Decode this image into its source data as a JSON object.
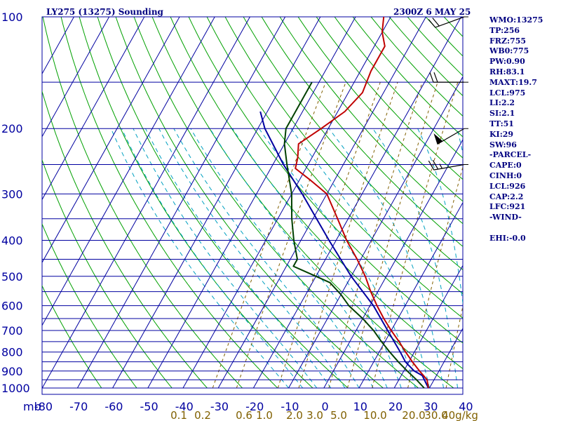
{
  "header": {
    "title": "LY275 (13275) Sounding",
    "time": "2300Z  6 MAY 25"
  },
  "side_panel": [
    "WMO:13275",
    "TP:256",
    "FRZ:755",
    "WB0:775",
    "PW:0.90",
    "RH:83.1",
    "MAXT:19.7",
    "LCL:975",
    "LI:2.2",
    "SI:2.1",
    "TT:51",
    "KI:29",
    "SW:96",
    "-PARCEL-",
    "CAPE:0",
    "CINH:0",
    "LCL:926",
    "CAP:2.2",
    "LFC:921",
    "-WIND-",
    "",
    "EHI:-0.0"
  ],
  "colors": {
    "isobar": "#0000a0",
    "isotherm": "#0000a0",
    "dry_adiabat": "#00a000",
    "moist_adiabat": "#00a0c0",
    "mixing_ratio": "#806000",
    "temperature": "#c00000",
    "dewpoint": "#004000",
    "parcel": "#0000a0",
    "wind": "#000000"
  },
  "chart_data": {
    "type": "skew-t",
    "title": "LY275 (13275) Sounding",
    "y_axis": {
      "label": "mb",
      "scale": "log",
      "range": [
        1000,
        100
      ],
      "ticks": [
        100,
        200,
        300,
        400,
        500,
        600,
        700,
        800,
        900,
        1000
      ]
    },
    "x_axis": {
      "unit": "°C",
      "range": [
        -80,
        40
      ],
      "ticks": [
        -80,
        -70,
        -60,
        -50,
        -40,
        -30,
        -20,
        -10,
        0,
        10,
        20,
        30,
        40
      ]
    },
    "mixing_ratio_labels": [
      "0.1",
      "0.2",
      "0.6",
      "1.0",
      "2.0",
      "3.0",
      "5.0",
      "10.0",
      "20.0",
      "30.0",
      "40g/kg"
    ],
    "temperature": [
      [
        1000,
        19.7
      ],
      [
        950,
        18
      ],
      [
        900,
        14.5
      ],
      [
        850,
        11
      ],
      [
        800,
        7.5
      ],
      [
        750,
        4
      ],
      [
        700,
        0
      ],
      [
        650,
        -4
      ],
      [
        600,
        -8
      ],
      [
        550,
        -12
      ],
      [
        500,
        -16
      ],
      [
        450,
        -21
      ],
      [
        400,
        -27
      ],
      [
        350,
        -33
      ],
      [
        300,
        -40
      ],
      [
        275,
        -47
      ],
      [
        256,
        -53
      ],
      [
        240,
        -54
      ],
      [
        220,
        -56
      ],
      [
        200,
        -52
      ],
      [
        180,
        -48
      ],
      [
        160,
        -46
      ],
      [
        140,
        -47
      ],
      [
        120,
        -47
      ],
      [
        110,
        -50
      ],
      [
        100,
        -52
      ]
    ],
    "dewpoint": [
      [
        1000,
        18.5
      ],
      [
        950,
        15
      ],
      [
        900,
        11
      ],
      [
        850,
        7
      ],
      [
        800,
        3
      ],
      [
        750,
        -1
      ],
      [
        700,
        -5
      ],
      [
        650,
        -10
      ],
      [
        600,
        -16
      ],
      [
        560,
        -20
      ],
      [
        520,
        -25
      ],
      [
        500,
        -30
      ],
      [
        470,
        -38
      ],
      [
        450,
        -38
      ],
      [
        400,
        -42
      ],
      [
        350,
        -46
      ],
      [
        300,
        -50
      ],
      [
        250,
        -56
      ],
      [
        220,
        -60
      ],
      [
        200,
        -62
      ],
      [
        180,
        -62
      ],
      [
        150,
        -62
      ]
    ],
    "parcel": [
      [
        1000,
        19.7
      ],
      [
        926,
        16
      ],
      [
        900,
        13
      ],
      [
        850,
        9
      ],
      [
        800,
        6
      ],
      [
        700,
        -1
      ],
      [
        600,
        -9
      ],
      [
        500,
        -20
      ],
      [
        400,
        -32
      ],
      [
        300,
        -47
      ],
      [
        250,
        -57
      ],
      [
        200,
        -68
      ],
      [
        180,
        -72
      ]
    ],
    "winds": [
      {
        "p": 100,
        "dir": 250,
        "spd": 20
      },
      {
        "p": 150,
        "dir": 270,
        "spd": 20
      },
      {
        "p": 200,
        "dir": 240,
        "spd": 50
      },
      {
        "p": 250,
        "dir": 260,
        "spd": 25
      }
    ]
  }
}
